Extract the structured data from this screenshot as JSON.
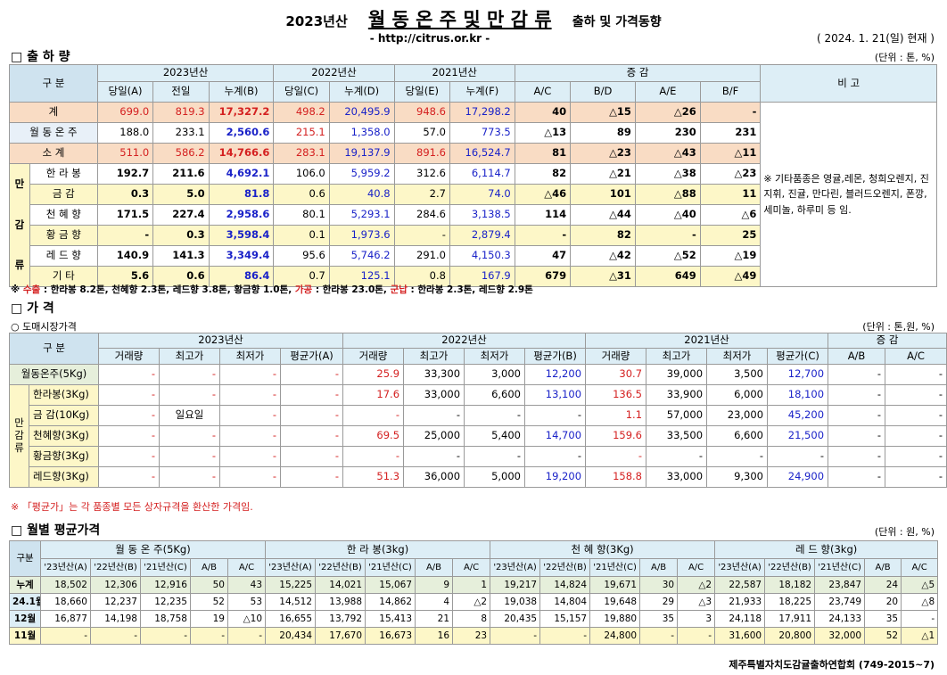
{
  "header": {
    "title_prefix": "2023년산",
    "title_main": "월 동 온 주 및 만 감 류",
    "title_suffix": "출하 및 가격동향",
    "url": "- http://citrus.or.kr -",
    "date": "( 2024.  1. 21(일) 현재 )"
  },
  "shipment": {
    "section_title": "□ 출 하 량",
    "unit": "(단위 : 톤, %)",
    "hdr_category": "구    분",
    "hdr_years": [
      "2023년산",
      "2022년산",
      "2021년산"
    ],
    "hdr_change": "증      감",
    "hdr_note": "비 고",
    "subhdr": [
      "당일(A)",
      "전일",
      "누계(B)",
      "당일(C)",
      "누계(D)",
      "당일(E)",
      "누계(F)",
      "A/C",
      "B/D",
      "A/E",
      "B/F"
    ],
    "rows": [
      {
        "label": "계",
        "vals": [
          "699.0",
          "819.3",
          "17,327.2",
          "498.2",
          "20,495.9",
          "948.6",
          "17,298.2",
          "40",
          "△15",
          "△26",
          "-"
        ]
      },
      {
        "label": "월 동 온 주",
        "vals": [
          "188.0",
          "233.1",
          "2,560.6",
          "215.1",
          "1,358.0",
          "57.0",
          "773.5",
          "△13",
          "89",
          "230",
          "231"
        ]
      },
      {
        "label": "소    계",
        "vals": [
          "511.0",
          "586.2",
          "14,766.6",
          "283.1",
          "19,137.9",
          "891.6",
          "16,524.7",
          "81",
          "△23",
          "△43",
          "△11"
        ]
      },
      {
        "label": "한 라 봉",
        "vals": [
          "192.7",
          "211.6",
          "4,692.1",
          "106.0",
          "5,959.2",
          "312.6",
          "6,114.7",
          "82",
          "△21",
          "△38",
          "△23"
        ]
      },
      {
        "label": "금    감",
        "vals": [
          "0.3",
          "5.0",
          "81.8",
          "0.6",
          "40.8",
          "2.7",
          "74.0",
          "△46",
          "101",
          "△88",
          "11"
        ]
      },
      {
        "label": "천 혜 향",
        "vals": [
          "171.5",
          "227.4",
          "2,958.6",
          "80.1",
          "5,293.1",
          "284.6",
          "3,138.5",
          "114",
          "△44",
          "△40",
          "△6"
        ]
      },
      {
        "label": "황 금 향",
        "vals": [
          "-",
          "0.3",
          "3,598.4",
          "0.1",
          "1,973.6",
          "-",
          "2,879.4",
          "-",
          "82",
          "-",
          "25"
        ]
      },
      {
        "label": "레 드 향",
        "vals": [
          "140.9",
          "141.3",
          "3,349.4",
          "95.6",
          "5,746.2",
          "291.0",
          "4,150.3",
          "47",
          "△42",
          "△52",
          "△19"
        ]
      },
      {
        "label": "기    타",
        "vals": [
          "5.6",
          "0.6",
          "86.4",
          "0.7",
          "125.1",
          "0.8",
          "167.9",
          "679",
          "△31",
          "649",
          "△49"
        ]
      }
    ],
    "mangam_chars": [
      "만",
      "감",
      "류"
    ],
    "note": "※ 기타품종은 영귤,레몬, 청희오렌지, 진지휘, 진귤, 만다린, 블러드오렌지, 폰깡,세미놀, 하루미 등 임.",
    "footnote_segments": [
      {
        "text": "※ ",
        "color": "#000000"
      },
      {
        "text": "수출",
        "color": "#d42020"
      },
      {
        "text": " : 한라봉 8.2톤, 천혜향 2.3톤, 레드향 3.8톤, 황금향 1.0톤, ",
        "color": "#000000"
      },
      {
        "text": "가공",
        "color": "#d42020"
      },
      {
        "text": " : 한라봉 23.0톤, ",
        "color": "#000000"
      },
      {
        "text": "군납",
        "color": "#d42020"
      },
      {
        "text": " : 한라봉 2.3톤, 레드향 2.9톤",
        "color": "#000000"
      }
    ]
  },
  "price": {
    "section_title": "□ 가      격",
    "subtitle": "○ 도매시장가격",
    "unit": "(단위 : 톤,원, %)",
    "hdr_category": "구    분",
    "hdr_years": [
      "2023년산",
      "2022년산",
      "2021년산"
    ],
    "hdr_change": "증    감",
    "subhdr": [
      "거래량",
      "최고가",
      "최저가",
      "평균가(A)",
      "거래량",
      "최고가",
      "최저가",
      "평균가(B)",
      "거래량",
      "최고가",
      "최저가",
      "평균가(C)",
      "A/B",
      "A/C"
    ],
    "rows": [
      {
        "label": "월동온주(5Kg)",
        "vals": [
          "-",
          "-",
          "-",
          "-",
          "25.9",
          "33,300",
          "3,000",
          "12,200",
          "30.7",
          "39,000",
          "3,500",
          "12,700",
          "-",
          "-"
        ]
      },
      {
        "label": "한라봉(3Kg)",
        "vals": [
          "-",
          "-",
          "-",
          "-",
          "17.6",
          "33,000",
          "6,600",
          "13,100",
          "136.5",
          "33,900",
          "6,000",
          "18,100",
          "-",
          "-"
        ]
      },
      {
        "label": "금 감(10Kg)",
        "vals": [
          "-",
          "일요일",
          "-",
          "-",
          "-",
          "-",
          "-",
          "-",
          "1.1",
          "57,000",
          "23,000",
          "45,200",
          "-",
          "-"
        ]
      },
      {
        "label": "천혜향(3Kg)",
        "vals": [
          "-",
          "-",
          "-",
          "-",
          "69.5",
          "25,000",
          "5,400",
          "14,700",
          "159.6",
          "33,500",
          "6,600",
          "21,500",
          "-",
          "-"
        ]
      },
      {
        "label": "황금향(3Kg)",
        "vals": [
          "-",
          "-",
          "-",
          "-",
          "-",
          "-",
          "-",
          "-",
          "-",
          "-",
          "-",
          "-",
          "-",
          "-"
        ]
      },
      {
        "label": "레드향(3Kg)",
        "vals": [
          "-",
          "-",
          "-",
          "-",
          "51.3",
          "36,000",
          "5,000",
          "19,200",
          "158.8",
          "33,000",
          "9,300",
          "24,900",
          "-",
          "-"
        ]
      }
    ],
    "mangam_chars": [
      "만",
      "감",
      "류"
    ],
    "footnote": "※ 「평균가」는 각 품종별 모든 상자규격을 환산한 가격임."
  },
  "monthly": {
    "section_title": "□ 월별 평균가격",
    "unit": "(단위 : 원, %)",
    "hdr_category": "구분",
    "groups": [
      "월 동 온 주(5Kg)",
      "한  라  봉(3kg)",
      "천 혜 향(3Kg)",
      "레 드 향(3kg)"
    ],
    "subhdr": [
      "'23년산(A)",
      "'22년산(B)",
      "'21년산(C)",
      "A/B",
      "A/C"
    ],
    "rows": [
      {
        "label": "누계",
        "vals": [
          "18,502",
          "12,306",
          "12,916",
          "50",
          "43",
          "15,225",
          "14,021",
          "15,067",
          "9",
          "1",
          "19,217",
          "14,824",
          "19,671",
          "30",
          "△2",
          "22,587",
          "18,182",
          "23,847",
          "24",
          "△5"
        ]
      },
      {
        "label": "24.1월",
        "vals": [
          "18,660",
          "12,237",
          "12,235",
          "52",
          "53",
          "14,512",
          "13,988",
          "14,862",
          "4",
          "△2",
          "19,038",
          "14,804",
          "19,648",
          "29",
          "△3",
          "21,933",
          "18,225",
          "23,749",
          "20",
          "△8"
        ]
      },
      {
        "label": "12월",
        "vals": [
          "16,877",
          "14,198",
          "18,758",
          "19",
          "△10",
          "16,655",
          "13,792",
          "15,413",
          "21",
          "8",
          "20,435",
          "15,157",
          "19,880",
          "35",
          "3",
          "24,118",
          "17,911",
          "24,133",
          "35",
          "-"
        ]
      },
      {
        "label": "11월",
        "vals": [
          "-",
          "-",
          "-",
          "-",
          "-",
          "20,434",
          "17,670",
          "16,673",
          "16",
          "23",
          "-",
          "-",
          "24,800",
          "-",
          "-",
          "31,600",
          "20,800",
          "32,000",
          "52",
          "△1"
        ]
      }
    ],
    "footer": "제주특별자치도감귤출하연합회 (749-2015~7)"
  }
}
